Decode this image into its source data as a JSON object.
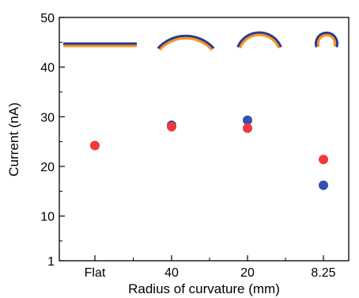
{
  "chart_data": {
    "type": "scatter",
    "xlabel": "Radius of curvature (mm)",
    "ylabel": "Current (nA)",
    "categories": [
      "Flat",
      "40",
      "20",
      "8.25"
    ],
    "ylim": [
      1,
      50
    ],
    "yticks": [
      "1",
      "10",
      "20",
      "30",
      "40",
      "50"
    ],
    "grid": false,
    "legend": "none",
    "series": [
      {
        "color": "#ee3a3a",
        "values": [
          24.2,
          28.0,
          27.7,
          21.4
        ]
      },
      {
        "color": "#3450b0",
        "values": [
          null,
          28.3,
          29.3,
          16.2
        ]
      }
    ],
    "bending_icons": {
      "outer_color": "#2b3990",
      "inner_color": "#f7941d",
      "shapes": [
        "flat",
        "bend-40",
        "bend-20",
        "bend-8.25"
      ]
    }
  }
}
